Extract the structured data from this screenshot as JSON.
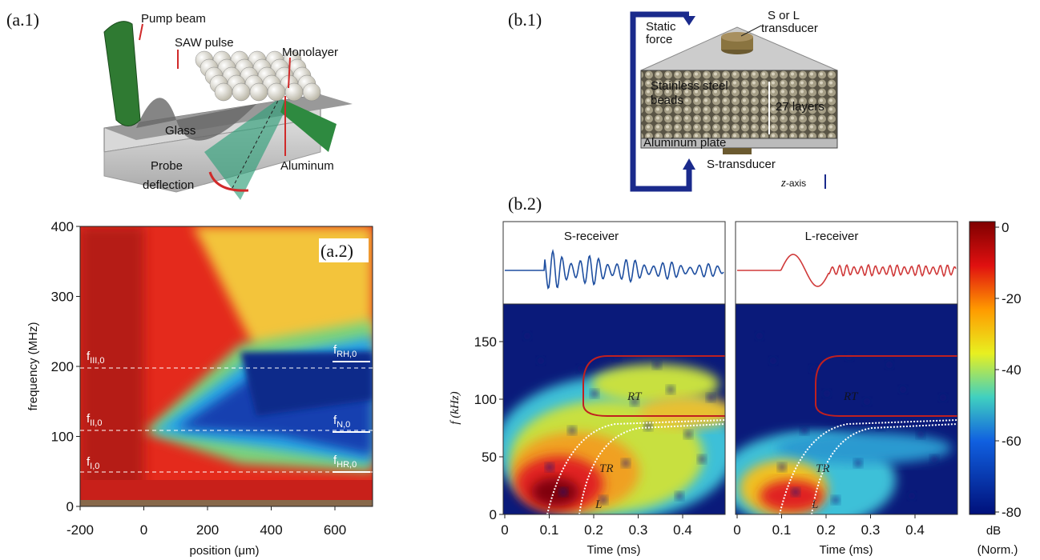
{
  "panel_labels": {
    "a1": "(a.1)",
    "a2": "(a.2)",
    "b1": "(b.1)",
    "b2": "(b.2)"
  },
  "a1": {
    "pump_beam": "Pump beam",
    "saw_pulse": "SAW pulse",
    "monolayer": "Monolayer",
    "glass": "Glass",
    "probe": "Probe",
    "deflection": "deflection",
    "aluminum": "Aluminum"
  },
  "a2": {
    "x_label": "position (μm)",
    "y_label": "frequency (MHz)",
    "xticks": [
      "-200",
      "0",
      "200",
      "400",
      "600"
    ],
    "yticks": [
      "0",
      "100",
      "200",
      "300",
      "400"
    ],
    "annotations": [
      {
        "base": "f",
        "sub": "III,0"
      },
      {
        "base": "f",
        "sub": "II,0"
      },
      {
        "base": "f",
        "sub": "I,0"
      },
      {
        "base": "f",
        "sub": "RH,0"
      },
      {
        "base": "f",
        "sub": "N,0"
      },
      {
        "base": "f",
        "sub": "HR,0"
      }
    ]
  },
  "b1": {
    "static": "Static",
    "force": "force",
    "s_or_l": "S or L",
    "transducer": "transducer",
    "stainless": "Stainless steel",
    "beads": "beads",
    "layers": "27 layers",
    "plate": "Aluminum plate",
    "s_transducer": "S-transducer",
    "z": "z",
    "axis": "-axis"
  },
  "b2": {
    "receivers": [
      "S-receiver",
      "L-receiver"
    ],
    "y_label": "f (kHz)",
    "yticks": [
      "0",
      "50",
      "100",
      "150"
    ],
    "xticks": [
      "0",
      "0.1",
      "0.2",
      "0.3",
      "0.4"
    ],
    "x_label": "Time (ms)",
    "regions": [
      "RT",
      "TR",
      "L"
    ],
    "colorbar_ticks": [
      "0",
      "-20",
      "-40",
      "-60",
      "-80"
    ],
    "colorbar_unit": "dB",
    "colorbar_note": "(Norm.)"
  }
}
